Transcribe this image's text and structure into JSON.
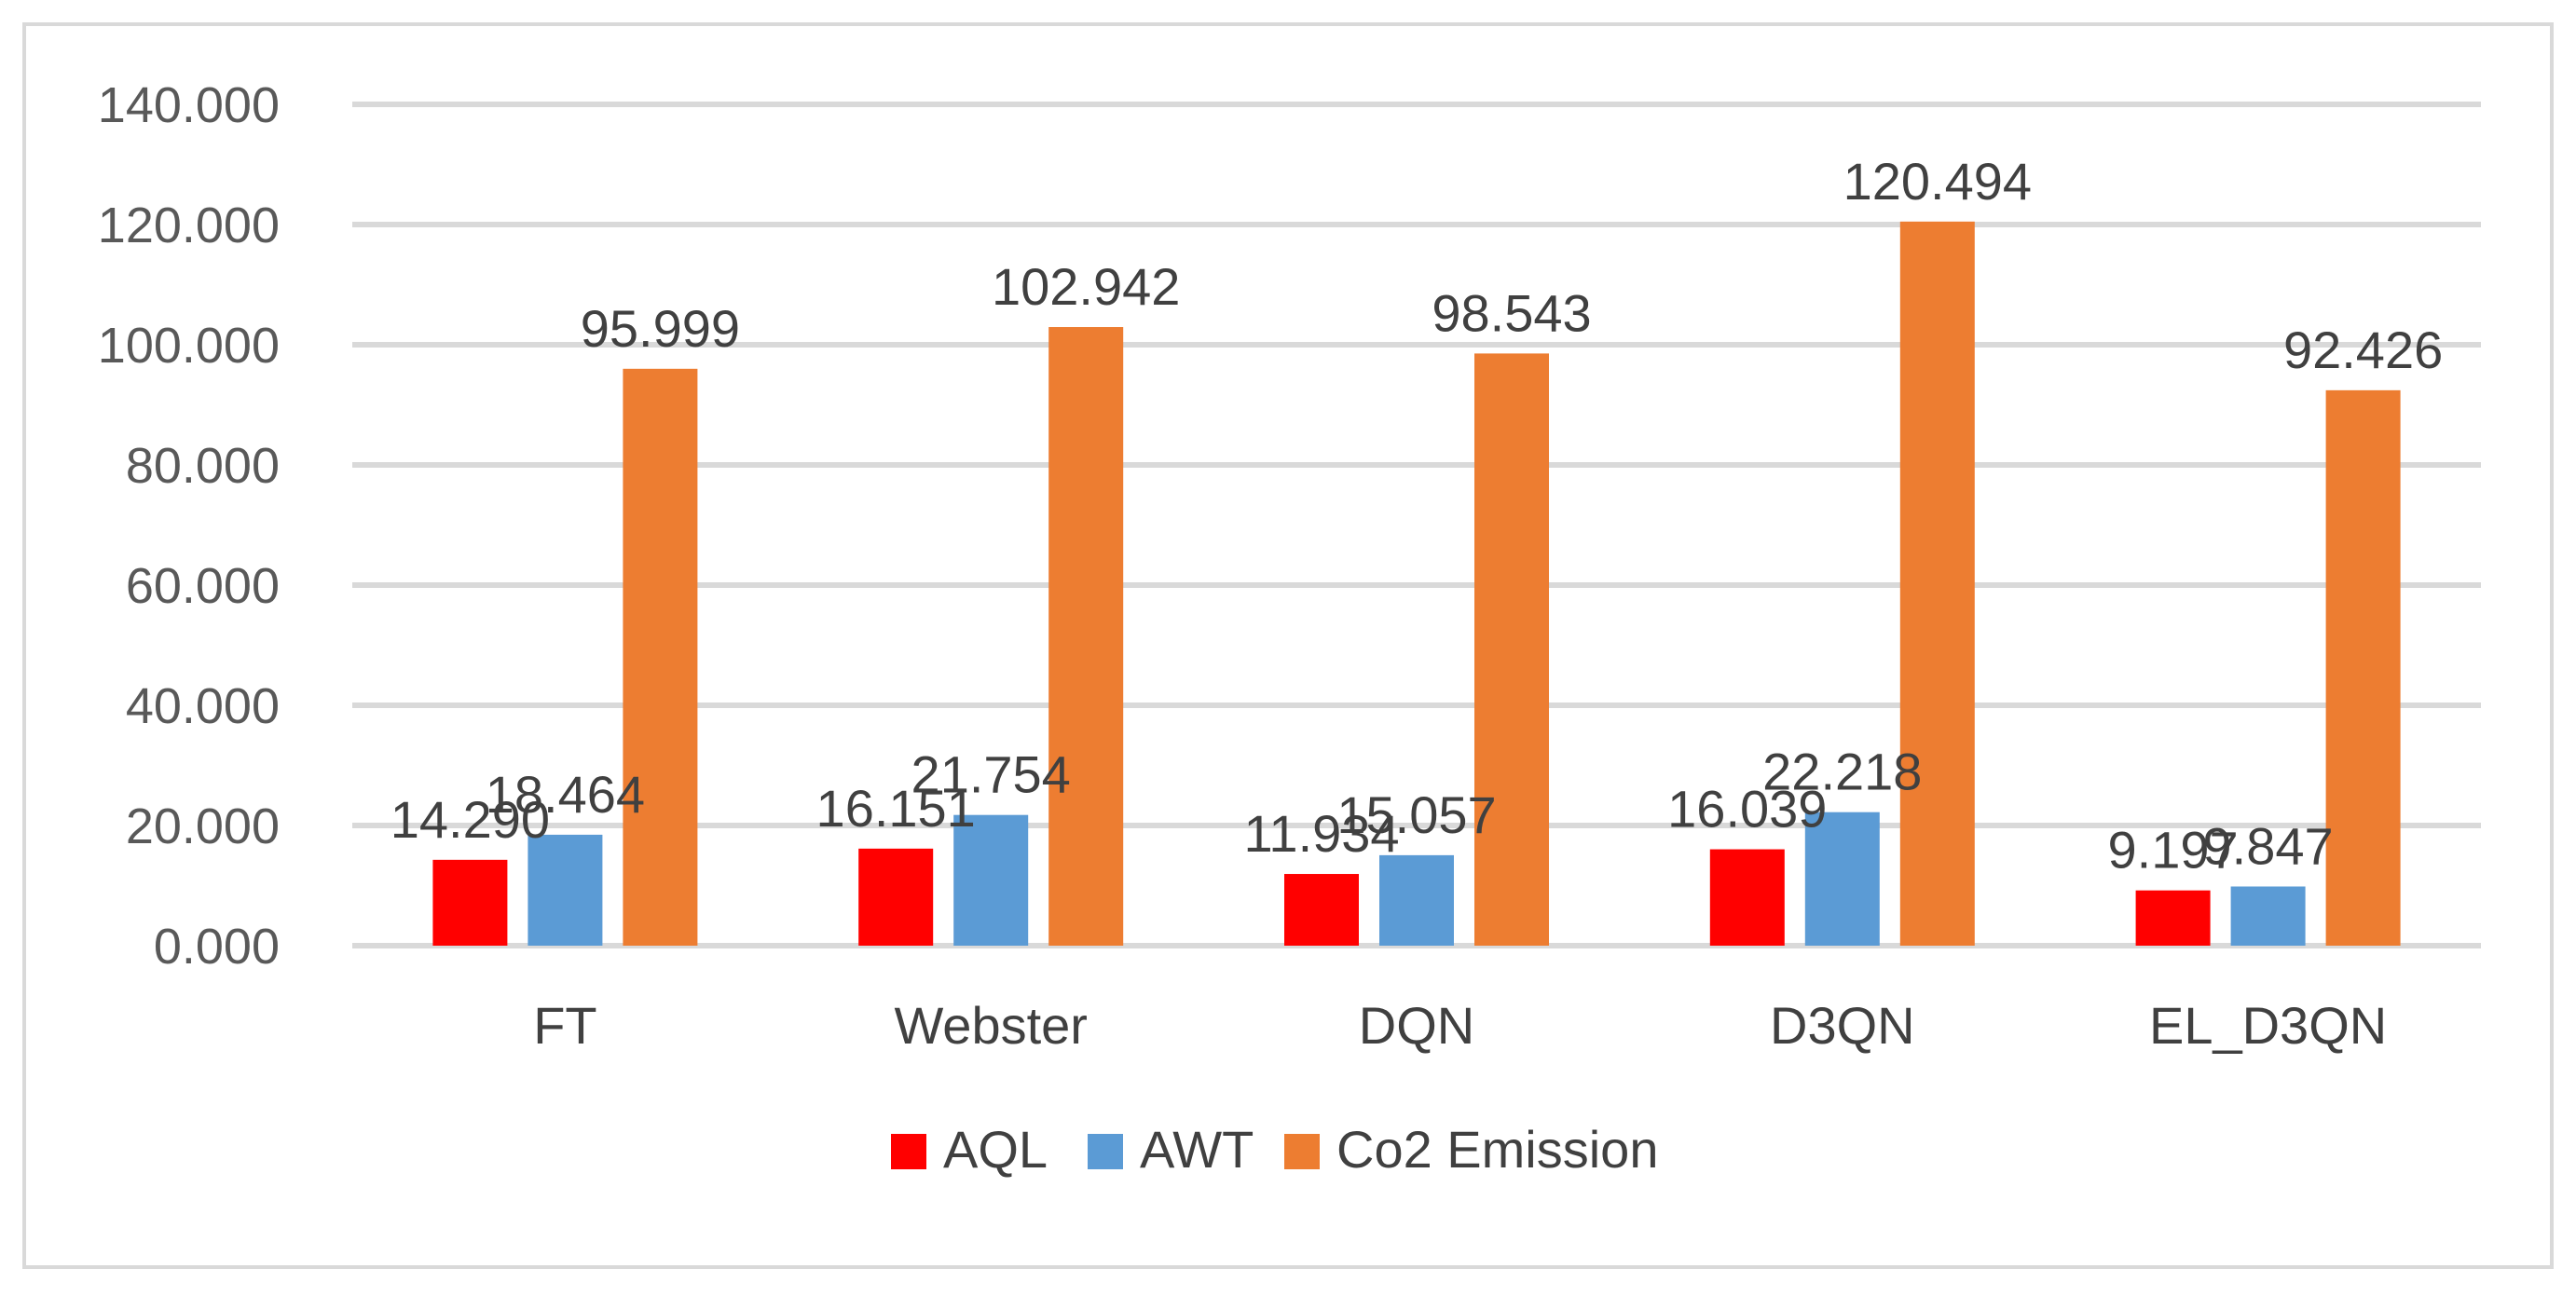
{
  "chart_data": {
    "type": "bar",
    "title": "",
    "xlabel": "",
    "ylabel": "",
    "categories": [
      "FT",
      "Webster",
      "DQN",
      "D3QN",
      "EL_D3QN"
    ],
    "series": [
      {
        "name": "AQL",
        "color": "#ff0000",
        "values": [
          14.29,
          16.151,
          11.934,
          16.039,
          9.197
        ]
      },
      {
        "name": "AWT",
        "color": "#5b9bd5",
        "values": [
          18.464,
          21.754,
          15.057,
          22.218,
          9.847
        ]
      },
      {
        "name": "Co2 Emission",
        "color": "#ed7d31",
        "values": [
          95.999,
          102.942,
          98.543,
          120.494,
          92.426
        ]
      }
    ],
    "data_labels": [
      [
        "14.290",
        "16.151",
        "11.934",
        "16.039",
        "9.197"
      ],
      [
        "18.464",
        "21.754",
        "15.057",
        "22.218",
        "9.847"
      ],
      [
        "95.999",
        "102.942",
        "98.543",
        "120.494",
        "92.426"
      ]
    ],
    "ylim": [
      0,
      140
    ],
    "yticks": [
      0,
      20,
      40,
      60,
      80,
      100,
      120,
      140
    ],
    "ytick_labels": [
      "0.000",
      "20.000",
      "40.000",
      "60.000",
      "80.000",
      "100.000",
      "120.000",
      "140.000"
    ],
    "grid": true,
    "legend_position": "bottom-center"
  }
}
